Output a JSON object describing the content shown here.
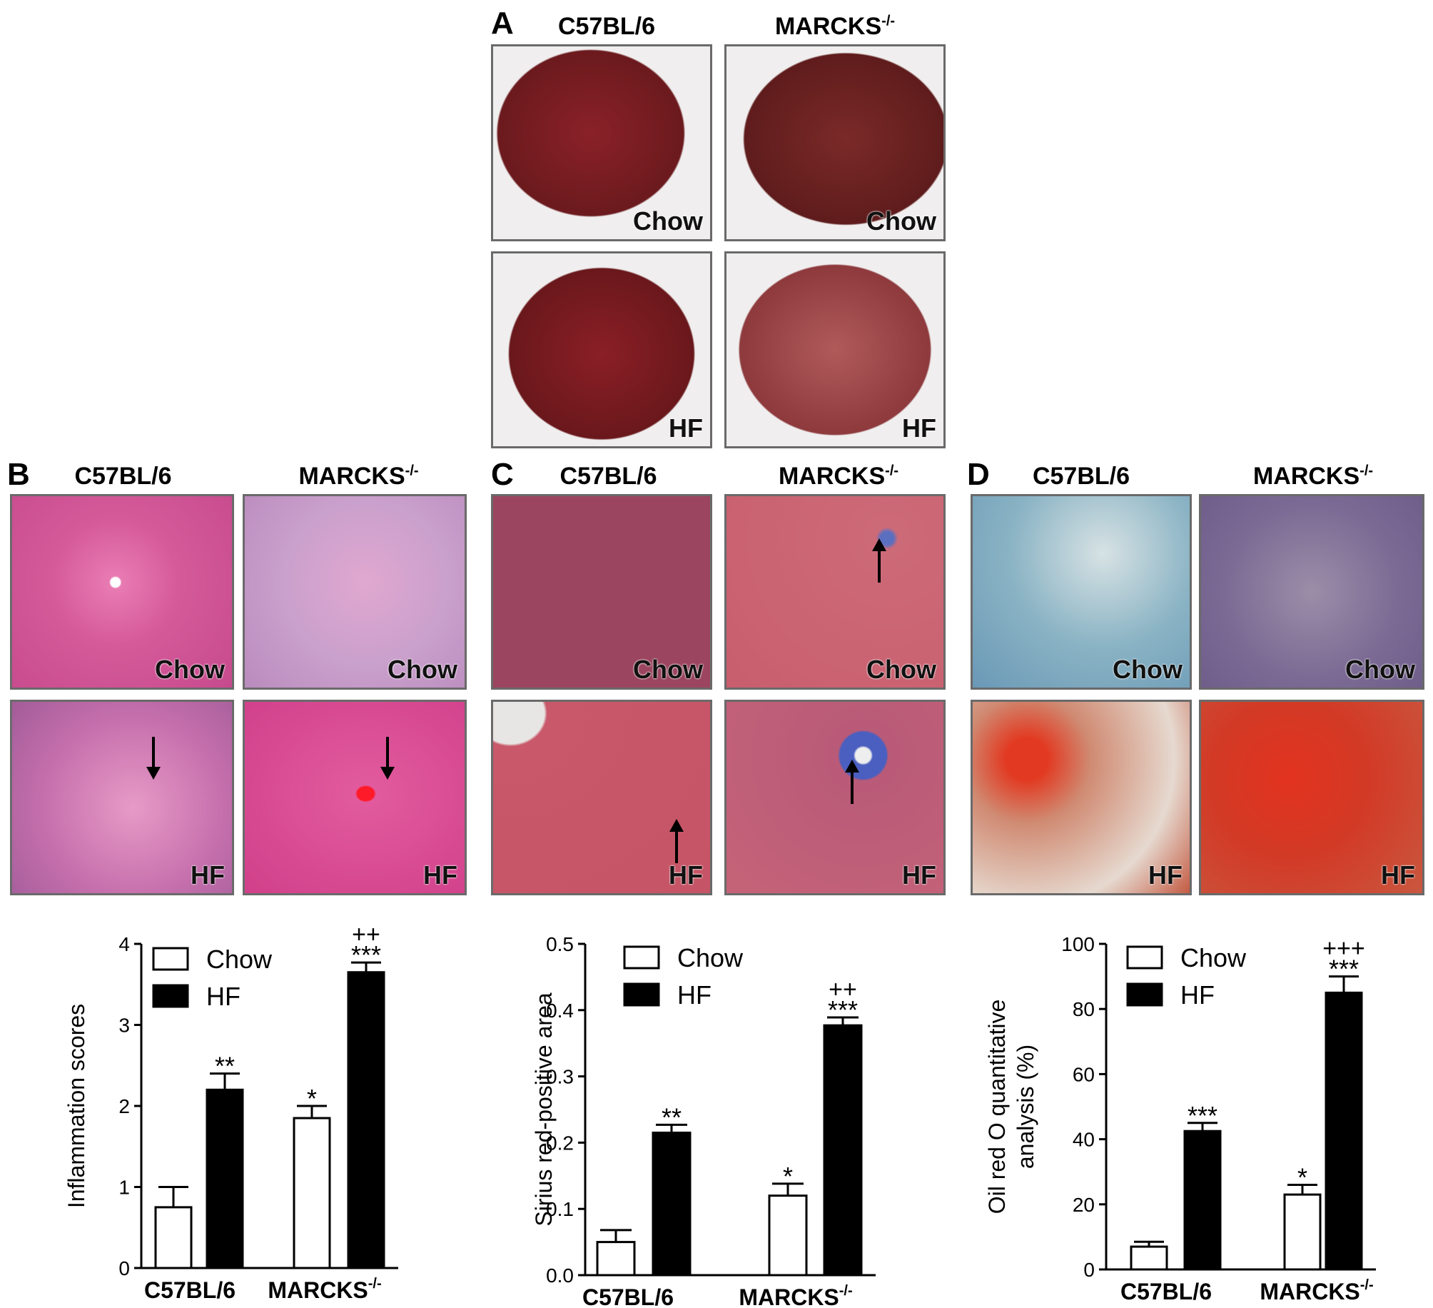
{
  "panels": {
    "A": {
      "letter": "A",
      "col1": "C57BL/6",
      "col2": "MARCKS",
      "sup": "-/-",
      "tiles": [
        "Chow",
        "Chow",
        "HF",
        "HF"
      ]
    },
    "B": {
      "letter": "B",
      "col1": "C57BL/6",
      "col2": "MARCKS",
      "sup": "-/-",
      "tiles": [
        "Chow",
        "Chow",
        "HF",
        "HF"
      ]
    },
    "C": {
      "letter": "C",
      "col1": "C57BL/6",
      "col2": "MARCKS",
      "sup": "-/-",
      "tiles": [
        "Chow",
        "Chow",
        "HF",
        "HF"
      ]
    },
    "D": {
      "letter": "D",
      "col1": "C57BL/6",
      "col2": "MARCKS",
      "sup": "-/-",
      "tiles": [
        "Chow",
        "Chow",
        "HF",
        "HF"
      ]
    }
  },
  "colors": {
    "liver": "#7a1e22",
    "he": "#d9609e",
    "sirius": "#b7505f",
    "oil_bg": "#8fb3c2",
    "oil_red": "#d6301e",
    "chow_bar": "#ffffff",
    "hf_bar": "#000000"
  },
  "chart_data": [
    {
      "type": "bar",
      "ylabel": "Inflammation scores",
      "ylim": [
        0,
        4
      ],
      "yticks": [
        "0",
        "1",
        "2",
        "3",
        "4"
      ],
      "categories": [
        {
          "label": "C57BL/6",
          "sup": ""
        },
        {
          "label": "MARCKS",
          "sup": "-/-"
        }
      ],
      "series": [
        {
          "name": "Chow",
          "values": [
            0.75,
            1.85
          ],
          "errors": [
            0.25,
            0.15
          ],
          "marks": [
            "",
            "*"
          ]
        },
        {
          "name": "HF",
          "values": [
            2.2,
            3.65
          ],
          "errors": [
            0.2,
            0.12
          ],
          "marks": [
            "**",
            "***"
          ],
          "marks2": [
            "",
            "++"
          ]
        }
      ]
    },
    {
      "type": "bar",
      "ylabel": "Sirius red-positive area",
      "ylim": [
        0,
        0.5
      ],
      "yticks": [
        "0.0",
        "0.1",
        "0.2",
        "0.3",
        "0.4",
        "0.5"
      ],
      "categories": [
        {
          "label": "C57BL/6",
          "sup": ""
        },
        {
          "label": "MARCKS",
          "sup": "-/-"
        }
      ],
      "series": [
        {
          "name": "Chow",
          "values": [
            0.05,
            0.12
          ],
          "errors": [
            0.018,
            0.018
          ],
          "marks": [
            "",
            "*"
          ]
        },
        {
          "name": "HF",
          "values": [
            0.215,
            0.377
          ],
          "errors": [
            0.012,
            0.012
          ],
          "marks": [
            "**",
            "***"
          ],
          "marks2": [
            "",
            "++"
          ]
        }
      ]
    },
    {
      "type": "bar",
      "ylabel": "Oil red O quantitative analysis (%)",
      "ylim": [
        0,
        100
      ],
      "yticks": [
        "0",
        "20",
        "40",
        "60",
        "80",
        "100"
      ],
      "categories": [
        {
          "label": "C57BL/6",
          "sup": ""
        },
        {
          "label": "MARCKS",
          "sup": "-/-"
        }
      ],
      "series": [
        {
          "name": "Chow",
          "values": [
            7,
            23
          ],
          "errors": [
            1.5,
            3
          ],
          "marks": [
            "",
            "*"
          ]
        },
        {
          "name": "HF",
          "values": [
            42.5,
            85
          ],
          "errors": [
            2.5,
            5
          ],
          "marks": [
            "***",
            "***"
          ],
          "marks2": [
            "",
            "+++"
          ]
        }
      ]
    }
  ]
}
